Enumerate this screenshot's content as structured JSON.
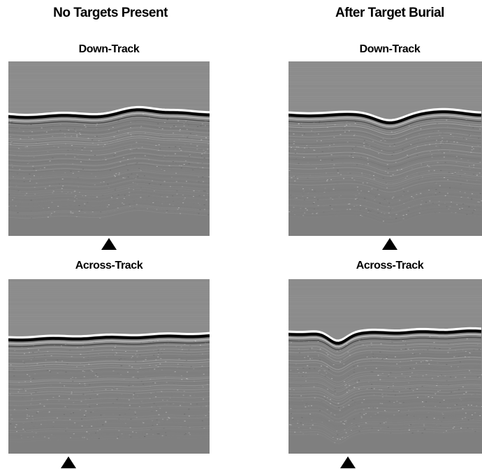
{
  "columns": [
    {
      "title": "No Targets Present",
      "panels": [
        {
          "label": "Down-Track"
        },
        {
          "label": "Across-Track"
        }
      ]
    },
    {
      "title": "After Target Burial",
      "panels": [
        {
          "label": "Down-Track"
        },
        {
          "label": "Across-Track"
        }
      ]
    }
  ],
  "colors": {
    "water": "#8c8c8c",
    "sediment": "#7f7f7f",
    "bright_reflector": "#ffffff",
    "dark_reflector": "#000000",
    "marker": "#000000"
  }
}
